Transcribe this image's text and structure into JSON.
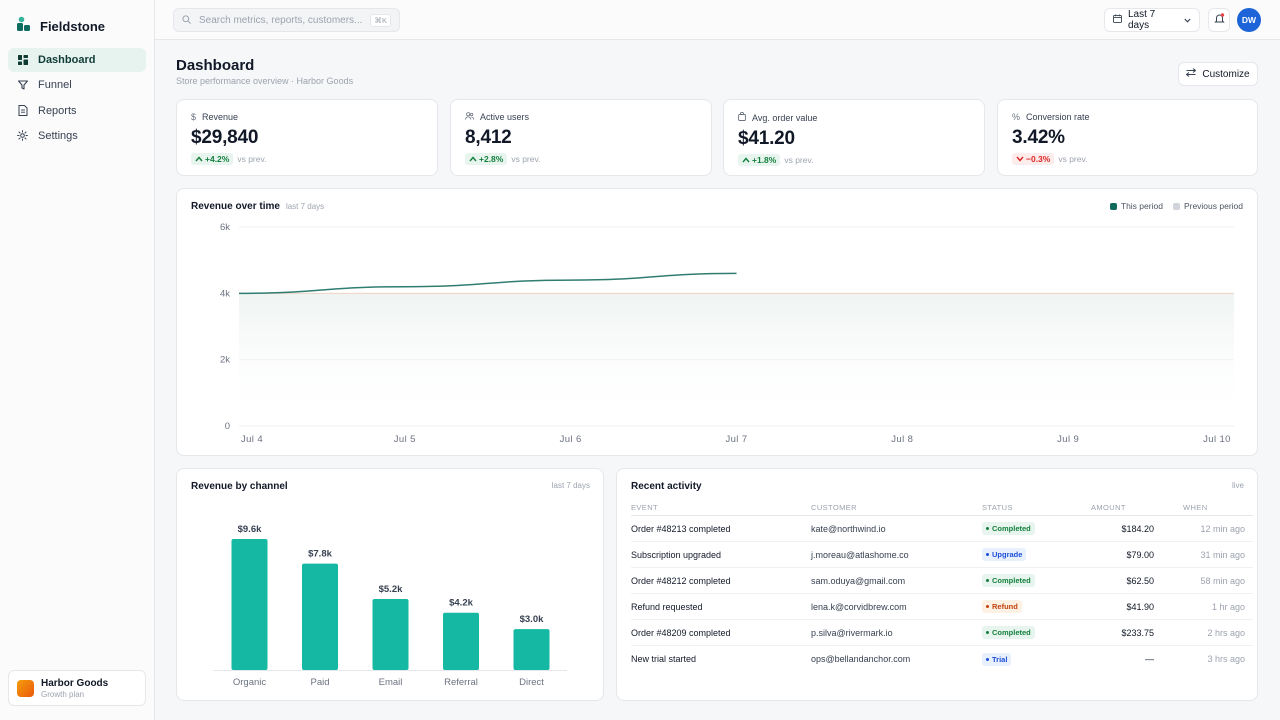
{
  "app": {
    "name": "Fieldstone"
  },
  "sidebar": {
    "items": [
      {
        "label": "Dashboard",
        "icon": "dashboard-icon",
        "active": true
      },
      {
        "label": "Funnel",
        "icon": "funnel-icon",
        "active": false
      },
      {
        "label": "Reports",
        "icon": "document-icon",
        "active": false
      },
      {
        "label": "Settings",
        "icon": "gear-icon",
        "active": false
      }
    ],
    "org": {
      "name": "Harbor Goods",
      "plan": "Growth plan"
    }
  },
  "topbar": {
    "search_placeholder": "Search metrics, reports, customers...",
    "search_shortcut": "⌘K",
    "date_range": "Last 7 days",
    "user_initials": "DW"
  },
  "header": {
    "title": "Dashboard",
    "subtitle": "Store performance overview · Harbor Goods",
    "customize_label": "Customize"
  },
  "kpis": [
    {
      "label": "Revenue",
      "icon": "dollar-icon",
      "value": "$29,840",
      "delta": "+4.2%",
      "direction": "up",
      "vs": "vs prev."
    },
    {
      "label": "Active users",
      "icon": "users-icon",
      "value": "8,412",
      "delta": "+2.8%",
      "direction": "up",
      "vs": "vs prev."
    },
    {
      "label": "Avg. order value",
      "icon": "bag-icon",
      "value": "$41.20",
      "delta": "+1.8%",
      "direction": "up",
      "vs": "vs prev."
    },
    {
      "label": "Conversion rate",
      "icon": "percent-icon",
      "value": "3.42%",
      "delta": "−0.3%",
      "direction": "down",
      "vs": "vs prev."
    }
  ],
  "revenue_chart": {
    "title": "Revenue over time",
    "subtitle": "last 7 days",
    "legend": [
      "This period",
      "Previous period"
    ]
  },
  "channel_chart": {
    "title": "Revenue by channel",
    "range": "last 7 days"
  },
  "activity": {
    "title": "Recent activity",
    "live": "live",
    "columns": [
      "EVENT",
      "CUSTOMER",
      "STATUS",
      "AMOUNT",
      "WHEN"
    ],
    "rows": [
      {
        "event": "Order #48213 completed",
        "customer": "kate@northwind.io",
        "status": "Completed",
        "status_type": "completed",
        "amount": "$184.20",
        "when": "12 min ago"
      },
      {
        "event": "Subscription upgraded",
        "customer": "j.moreau@atlashome.co",
        "status": "Upgrade",
        "status_type": "upgrade",
        "amount": "$79.00",
        "when": "31 min ago"
      },
      {
        "event": "Order #48212 completed",
        "customer": "sam.oduya@gmail.com",
        "status": "Completed",
        "status_type": "completed",
        "amount": "$62.50",
        "when": "58 min ago"
      },
      {
        "event": "Refund requested",
        "customer": "lena.k@corvidbrew.com",
        "status": "Refund",
        "status_type": "refund",
        "amount": "$41.90",
        "when": "1 hr ago"
      },
      {
        "event": "Order #48209 completed",
        "customer": "p.silva@rivermark.io",
        "status": "Completed",
        "status_type": "completed",
        "amount": "$233.75",
        "when": "2 hrs ago"
      },
      {
        "event": "New trial started",
        "customer": "ops@bellandanchor.com",
        "status": "Trial",
        "status_type": "trial",
        "amount": "—",
        "when": "3 hrs ago"
      }
    ]
  },
  "colors": {
    "accent": "#0f6b5e",
    "bar": "#14b8a3",
    "previous": "#d1d5db",
    "avatar": "#1d64d8"
  },
  "chart_data": [
    {
      "type": "line",
      "title": "Revenue over time",
      "x": [
        "Jul 4",
        "Jul 5",
        "Jul 6",
        "Jul 7",
        "Jul 8",
        "Jul 9",
        "Jul 10"
      ],
      "yticks": [
        "0",
        "2k",
        "4k",
        "6k"
      ],
      "ylim": [
        0,
        6000
      ],
      "series": [
        {
          "name": "This period",
          "values": [
            4000,
            4200,
            4400,
            4600,
            null,
            null,
            null
          ],
          "color": "#2f7d70"
        },
        {
          "name": "Previous period",
          "values": [
            4000,
            4000,
            4000,
            4000,
            4000,
            4000,
            4000
          ],
          "color": "#f1d4c4"
        }
      ],
      "grid": true,
      "legend_position": "top-right"
    },
    {
      "type": "bar",
      "title": "Revenue by channel",
      "categories": [
        "Organic",
        "Paid",
        "Email",
        "Referral",
        "Direct"
      ],
      "values": [
        9600,
        7800,
        5200,
        4200,
        3000
      ],
      "labels": [
        "$9.6k",
        "$7.8k",
        "$5.2k",
        "$4.2k",
        "$3.0k"
      ],
      "ylim": [
        0,
        10000
      ],
      "grid": false
    }
  ]
}
